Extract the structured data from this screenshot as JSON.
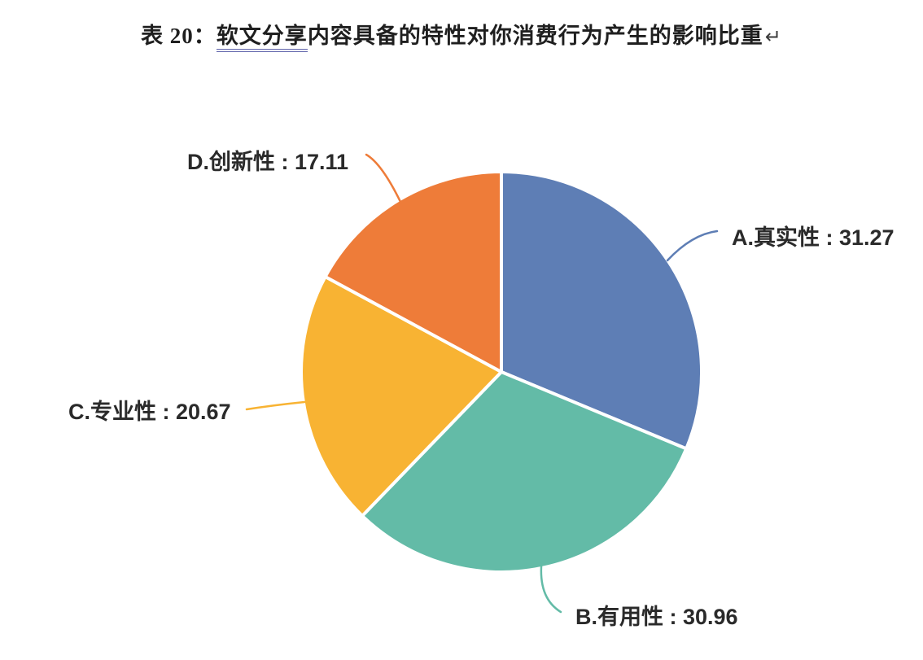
{
  "page": {
    "title_prefix": "表 20：",
    "title_underlined": "软文分享",
    "title_suffix": "内容具备的特性对你消费行为产生的影响比重",
    "paragraph_mark": "↵",
    "background_color": "#ffffff",
    "underline_color": "#5f63aa"
  },
  "chart_data": {
    "type": "pie",
    "title": "软文分享内容具备的特性对你消费行为产生的影响比重",
    "value_format": "percent",
    "start_angle_deg": 0,
    "direction": "clockwise",
    "legend_position": "none",
    "labels_style": "outside-with-leader-lines",
    "points": [
      {
        "label": "A.真实性",
        "value": 31.27,
        "display": "A.真实性 : 31.27",
        "color": "#5e7eb5"
      },
      {
        "label": "B.有用性",
        "value": 30.96,
        "display": "B.有用性 : 30.96",
        "color": "#63bba7"
      },
      {
        "label": "C.专业性",
        "value": 20.67,
        "display": "C.专业性 : 20.67",
        "color": "#f8b333"
      },
      {
        "label": "D.创新性",
        "value": 17.11,
        "display": "D.创新性 : 17.11",
        "color": "#ee7c39"
      }
    ]
  }
}
